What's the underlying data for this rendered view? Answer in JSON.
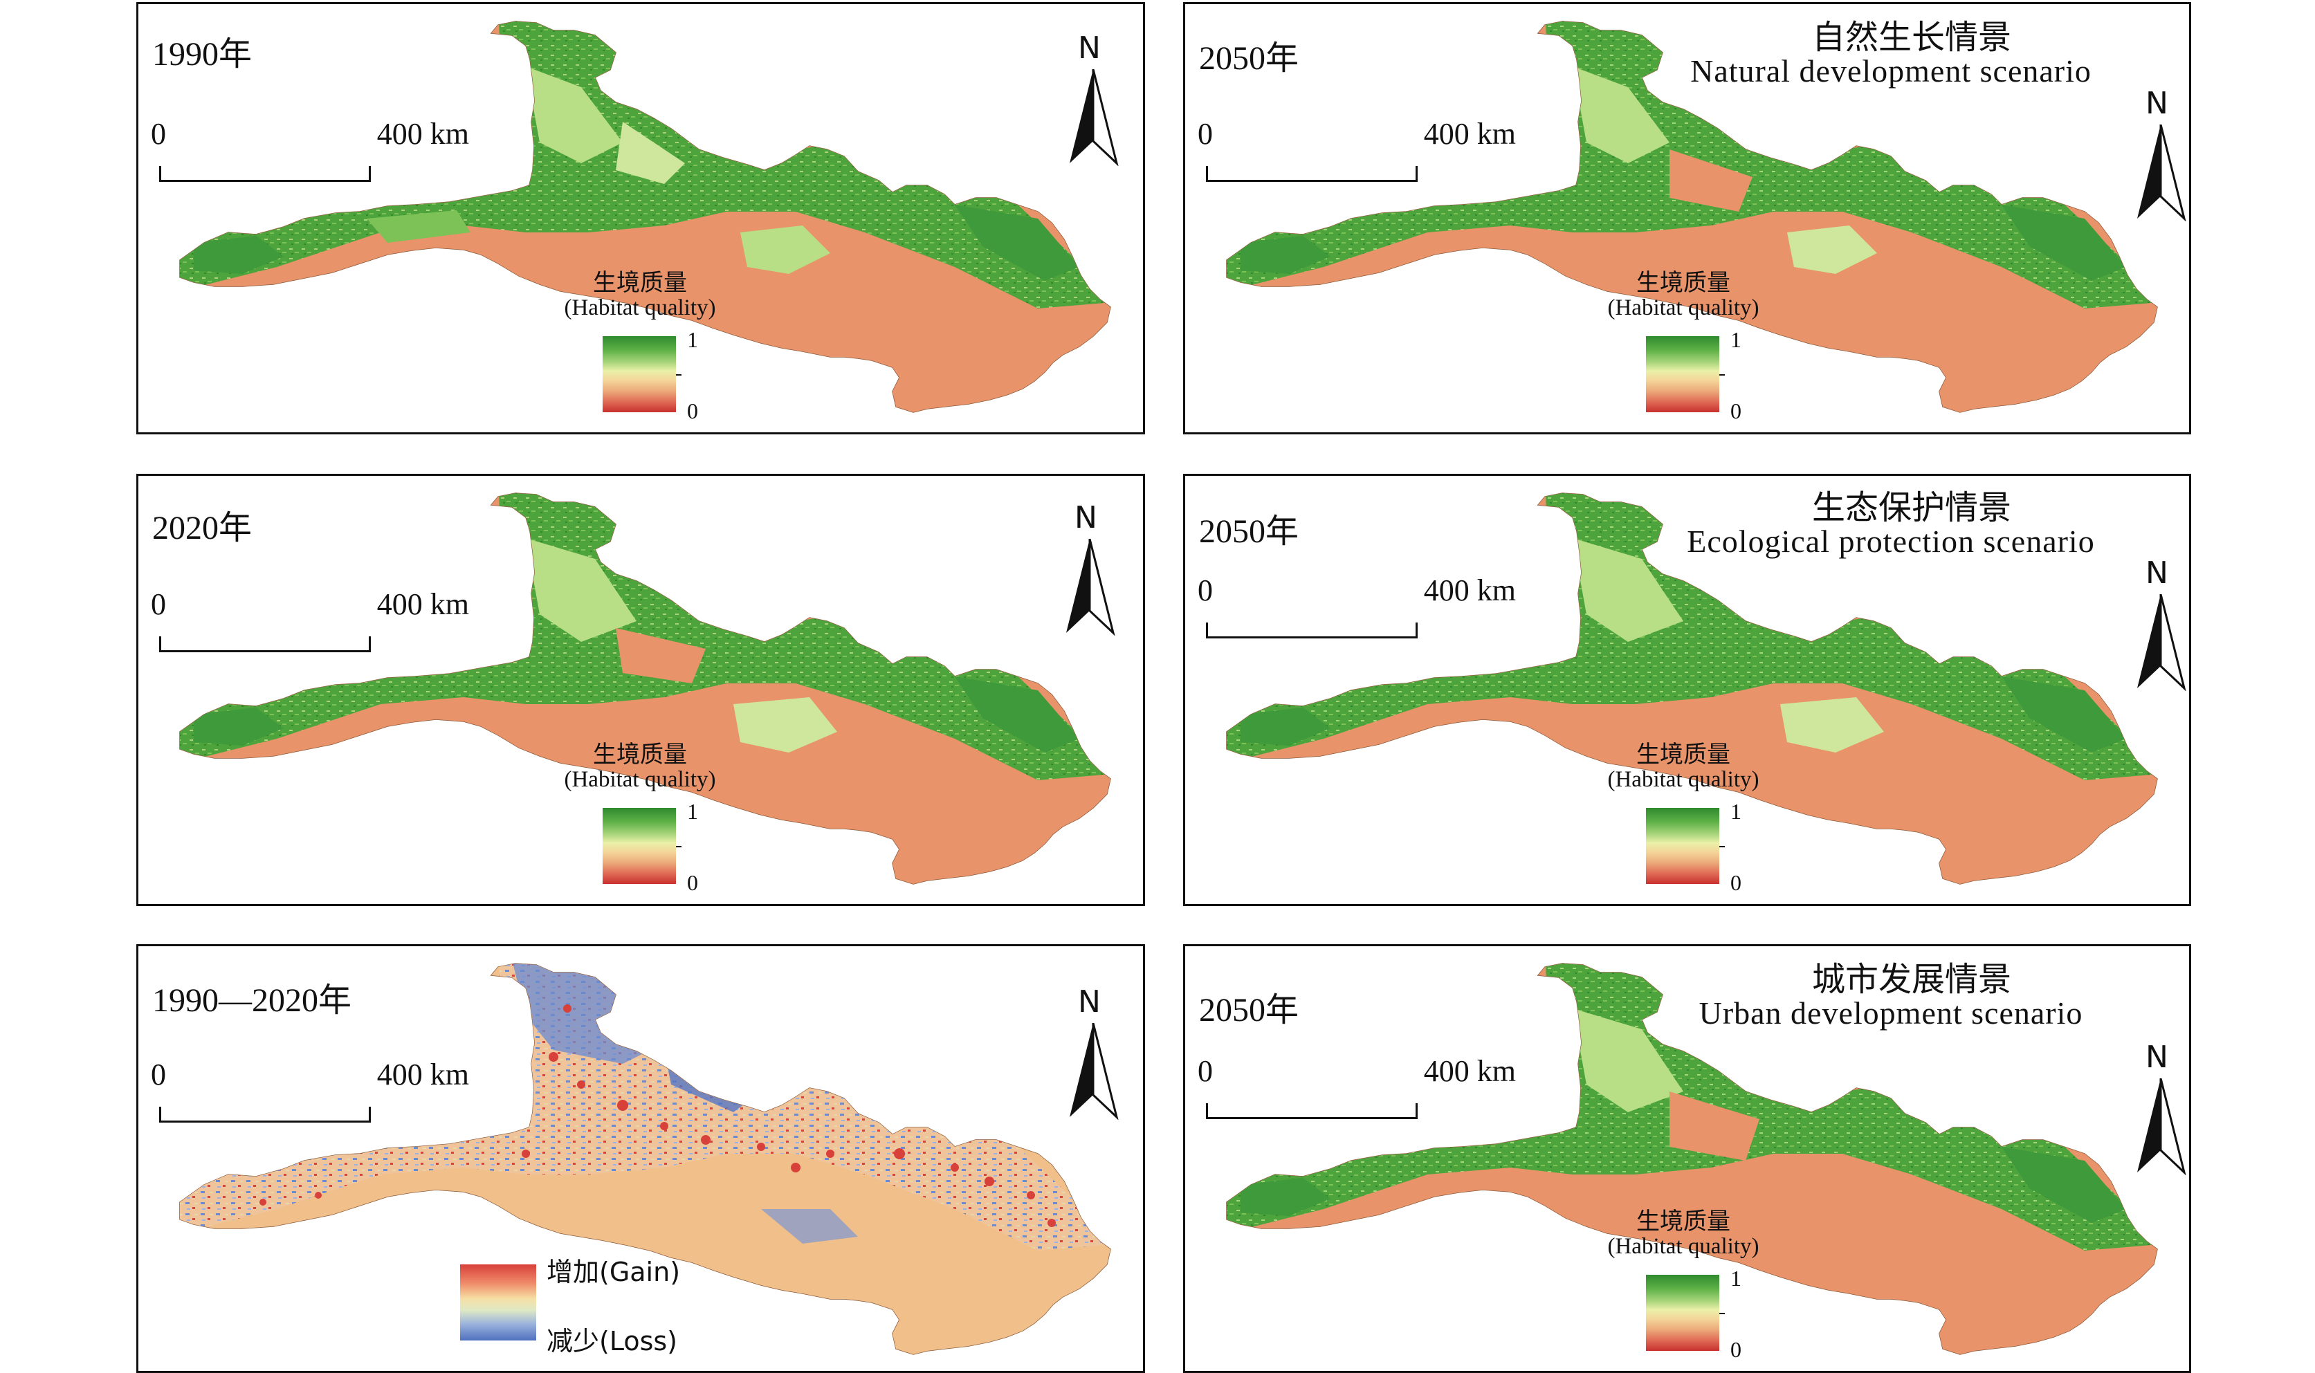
{
  "figure": {
    "colors": {
      "desert": "#e8936a",
      "green_dark": "#3e9a3a",
      "green_mid": "#6cbf4b",
      "green_light": "#b9df86",
      "change_bg": "#f1c08a",
      "gain": "#d8403a",
      "loss": "#5577c4"
    },
    "common": {
      "scale_zero": "0",
      "scale_max": "400 km",
      "north_label": "N",
      "legend_title_cn": "生境质量",
      "legend_title_en": "(Habitat quality)",
      "legend_high": "1",
      "legend_low": "0",
      "change_gain": "增加(Gain)",
      "change_loss": "减少(Loss)"
    },
    "panels": {
      "p1990": {
        "year": "1990年"
      },
      "p2020": {
        "year": "2020年"
      },
      "pchange": {
        "year": "1990—2020年"
      },
      "pnat": {
        "year": "2050年",
        "scenario_cn": "自然生长情景",
        "scenario_en": "Natural development scenario"
      },
      "peco": {
        "year": "2050年",
        "scenario_cn": "生态保护情景",
        "scenario_en": "Ecological protection scenario"
      },
      "purb": {
        "year": "2050年",
        "scenario_cn": "城市发展情景",
        "scenario_en": "Urban development scenario"
      }
    }
  }
}
